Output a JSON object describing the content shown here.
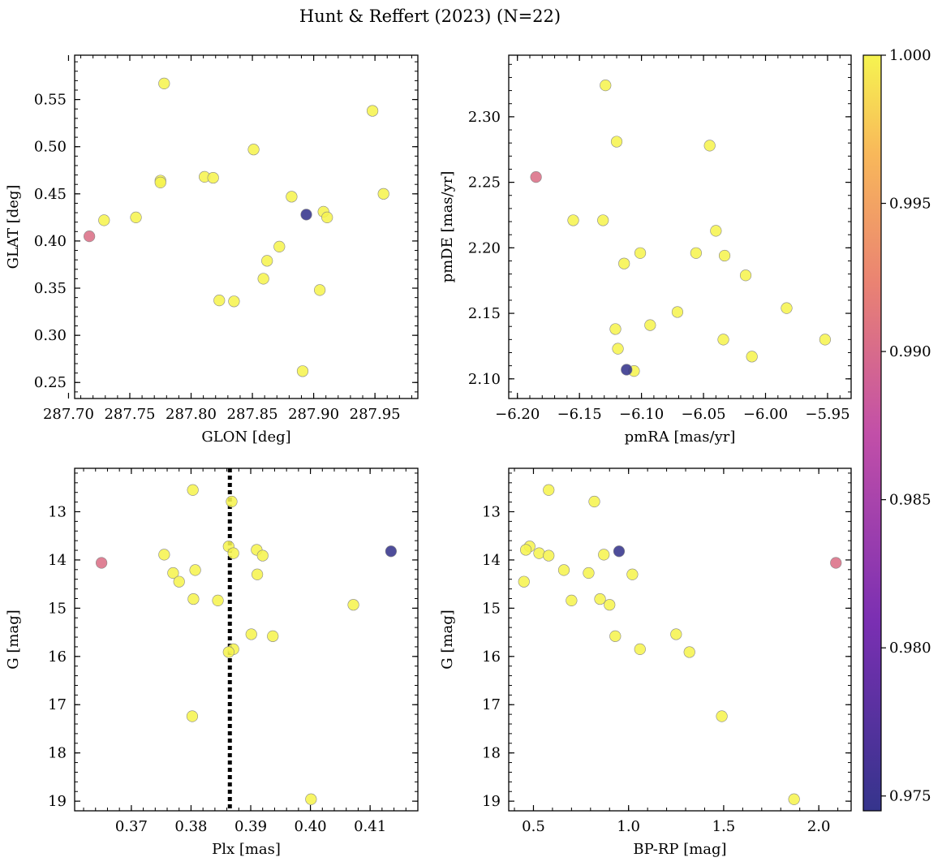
{
  "figure_title": "Hunt & Reffert (2023) (N=22)",
  "colorbar": {
    "ticks": [
      "0.975",
      "0.980",
      "0.985",
      "0.990",
      "0.995",
      "1.000"
    ],
    "range": [
      0.9745,
      1.0
    ]
  },
  "chart_data": [
    {
      "type": "scatter",
      "xlabel": "GLON [deg]",
      "ylabel": "GLAT [deg]",
      "xlim": [
        287.705,
        287.985
      ],
      "ylim": [
        0.233,
        0.597
      ],
      "xticks": [
        "287.70",
        "287.75",
        "287.80",
        "287.85",
        "287.90",
        "287.95"
      ],
      "yticks": [
        "0.25",
        "0.30",
        "0.35",
        "0.40",
        "0.45",
        "0.50",
        "0.55"
      ],
      "points": [
        {
          "x": 287.778,
          "y": 0.567,
          "c": 1.0
        },
        {
          "x": 287.948,
          "y": 0.538,
          "c": 1.0
        },
        {
          "x": 287.851,
          "y": 0.497,
          "c": 1.0
        },
        {
          "x": 287.811,
          "y": 0.468,
          "c": 1.0
        },
        {
          "x": 287.818,
          "y": 0.467,
          "c": 1.0
        },
        {
          "x": 287.775,
          "y": 0.464,
          "c": 1.0
        },
        {
          "x": 287.775,
          "y": 0.462,
          "c": 1.0
        },
        {
          "x": 287.957,
          "y": 0.45,
          "c": 1.0
        },
        {
          "x": 287.882,
          "y": 0.447,
          "c": 1.0
        },
        {
          "x": 287.908,
          "y": 0.431,
          "c": 1.0
        },
        {
          "x": 287.894,
          "y": 0.428,
          "c": 0.9745
        },
        {
          "x": 287.911,
          "y": 0.425,
          "c": 1.0
        },
        {
          "x": 287.755,
          "y": 0.425,
          "c": 1.0
        },
        {
          "x": 287.729,
          "y": 0.422,
          "c": 1.0
        },
        {
          "x": 287.717,
          "y": 0.405,
          "c": 0.9905
        },
        {
          "x": 287.872,
          "y": 0.394,
          "c": 1.0
        },
        {
          "x": 287.862,
          "y": 0.379,
          "c": 1.0
        },
        {
          "x": 287.859,
          "y": 0.36,
          "c": 1.0
        },
        {
          "x": 287.905,
          "y": 0.348,
          "c": 1.0
        },
        {
          "x": 287.823,
          "y": 0.337,
          "c": 1.0
        },
        {
          "x": 287.835,
          "y": 0.336,
          "c": 1.0
        },
        {
          "x": 287.891,
          "y": 0.262,
          "c": 1.0
        }
      ]
    },
    {
      "type": "scatter",
      "xlabel": "pmRA [mas/yr]",
      "ylabel": "pmDE [mas/yr]",
      "xlim": [
        -6.207,
        -5.931
      ],
      "ylim": [
        2.085,
        2.347
      ],
      "xticks": [
        "−6.20",
        "−6.15",
        "−6.10",
        "−6.05",
        "−6.00",
        "−5.95"
      ],
      "yticks": [
        "2.10",
        "2.15",
        "2.20",
        "2.25",
        "2.30"
      ],
      "points": [
        {
          "x": -6.129,
          "y": 2.324,
          "c": 1.0
        },
        {
          "x": -6.12,
          "y": 2.281,
          "c": 1.0
        },
        {
          "x": -6.045,
          "y": 2.278,
          "c": 1.0
        },
        {
          "x": -6.185,
          "y": 2.254,
          "c": 0.9905
        },
        {
          "x": -6.155,
          "y": 2.221,
          "c": 1.0
        },
        {
          "x": -6.131,
          "y": 2.221,
          "c": 1.0
        },
        {
          "x": -6.04,
          "y": 2.213,
          "c": 1.0
        },
        {
          "x": -6.101,
          "y": 2.196,
          "c": 1.0
        },
        {
          "x": -6.056,
          "y": 2.196,
          "c": 1.0
        },
        {
          "x": -6.033,
          "y": 2.194,
          "c": 1.0
        },
        {
          "x": -6.114,
          "y": 2.188,
          "c": 1.0
        },
        {
          "x": -6.016,
          "y": 2.179,
          "c": 1.0
        },
        {
          "x": -5.983,
          "y": 2.154,
          "c": 1.0
        },
        {
          "x": -6.071,
          "y": 2.151,
          "c": 1.0
        },
        {
          "x": -6.093,
          "y": 2.141,
          "c": 1.0
        },
        {
          "x": -6.121,
          "y": 2.138,
          "c": 1.0
        },
        {
          "x": -6.034,
          "y": 2.13,
          "c": 1.0
        },
        {
          "x": -5.952,
          "y": 2.13,
          "c": 1.0
        },
        {
          "x": -6.119,
          "y": 2.123,
          "c": 1.0
        },
        {
          "x": -6.011,
          "y": 2.117,
          "c": 1.0
        },
        {
          "x": -6.112,
          "y": 2.107,
          "c": 0.9745
        },
        {
          "x": -6.106,
          "y": 2.106,
          "c": 1.0
        }
      ]
    },
    {
      "type": "scatter",
      "xlabel": "Plx [mas]",
      "ylabel": "G [mag]",
      "xlim": [
        0.3605,
        0.418
      ],
      "ylim": [
        19.2,
        12.1
      ],
      "yinverted": true,
      "vline": 0.3865,
      "xticks": [
        "0.37",
        "0.38",
        "0.39",
        "0.40",
        "0.41"
      ],
      "yticks": [
        "13",
        "14",
        "15",
        "16",
        "17",
        "18",
        "19"
      ],
      "points": [
        {
          "x": 0.3803,
          "y": 12.55,
          "c": 1.0
        },
        {
          "x": 0.3868,
          "y": 12.79,
          "c": 1.0
        },
        {
          "x": 0.4135,
          "y": 13.82,
          "c": 0.9745
        },
        {
          "x": 0.3863,
          "y": 13.72,
          "c": 1.0
        },
        {
          "x": 0.391,
          "y": 13.79,
          "c": 1.0
        },
        {
          "x": 0.3871,
          "y": 13.86,
          "c": 1.0
        },
        {
          "x": 0.3755,
          "y": 13.89,
          "c": 1.0
        },
        {
          "x": 0.392,
          "y": 13.91,
          "c": 1.0
        },
        {
          "x": 0.365,
          "y": 14.06,
          "c": 0.9905
        },
        {
          "x": 0.3807,
          "y": 14.21,
          "c": 1.0
        },
        {
          "x": 0.377,
          "y": 14.27,
          "c": 1.0
        },
        {
          "x": 0.3911,
          "y": 14.3,
          "c": 1.0
        },
        {
          "x": 0.378,
          "y": 14.45,
          "c": 1.0
        },
        {
          "x": 0.3804,
          "y": 14.81,
          "c": 1.0
        },
        {
          "x": 0.3845,
          "y": 14.84,
          "c": 1.0
        },
        {
          "x": 0.4072,
          "y": 14.93,
          "c": 1.0
        },
        {
          "x": 0.3901,
          "y": 15.54,
          "c": 1.0
        },
        {
          "x": 0.3937,
          "y": 15.58,
          "c": 1.0
        },
        {
          "x": 0.3871,
          "y": 15.85,
          "c": 1.0
        },
        {
          "x": 0.3863,
          "y": 15.91,
          "c": 1.0
        },
        {
          "x": 0.3802,
          "y": 17.24,
          "c": 1.0
        },
        {
          "x": 0.4001,
          "y": 18.96,
          "c": 1.0
        }
      ]
    },
    {
      "type": "scatter",
      "xlabel": "BP-RP [mag]",
      "ylabel": "G [mag]",
      "xlim": [
        0.37,
        2.17
      ],
      "ylim": [
        19.2,
        12.1
      ],
      "yinverted": true,
      "xticks": [
        "0.5",
        "1.0",
        "1.5",
        "2.0"
      ],
      "yticks": [
        "13",
        "14",
        "15",
        "16",
        "17",
        "18",
        "19"
      ],
      "points": [
        {
          "x": 0.58,
          "y": 12.55,
          "c": 1.0
        },
        {
          "x": 0.82,
          "y": 12.79,
          "c": 1.0
        },
        {
          "x": 0.48,
          "y": 13.72,
          "c": 1.0
        },
        {
          "x": 0.46,
          "y": 13.79,
          "c": 1.0
        },
        {
          "x": 0.95,
          "y": 13.82,
          "c": 0.9745
        },
        {
          "x": 0.53,
          "y": 13.86,
          "c": 1.0
        },
        {
          "x": 0.87,
          "y": 13.89,
          "c": 1.0
        },
        {
          "x": 0.58,
          "y": 13.91,
          "c": 1.0
        },
        {
          "x": 2.09,
          "y": 14.06,
          "c": 0.9905
        },
        {
          "x": 0.66,
          "y": 14.21,
          "c": 1.0
        },
        {
          "x": 0.79,
          "y": 14.27,
          "c": 1.0
        },
        {
          "x": 1.02,
          "y": 14.3,
          "c": 1.0
        },
        {
          "x": 0.45,
          "y": 14.45,
          "c": 1.0
        },
        {
          "x": 0.85,
          "y": 14.81,
          "c": 1.0
        },
        {
          "x": 0.7,
          "y": 14.84,
          "c": 1.0
        },
        {
          "x": 0.9,
          "y": 14.93,
          "c": 1.0
        },
        {
          "x": 1.25,
          "y": 15.54,
          "c": 1.0
        },
        {
          "x": 0.93,
          "y": 15.58,
          "c": 1.0
        },
        {
          "x": 1.06,
          "y": 15.85,
          "c": 1.0
        },
        {
          "x": 1.32,
          "y": 15.91,
          "c": 1.0
        },
        {
          "x": 1.49,
          "y": 17.24,
          "c": 1.0
        },
        {
          "x": 1.87,
          "y": 18.96,
          "c": 1.0
        }
      ]
    }
  ]
}
